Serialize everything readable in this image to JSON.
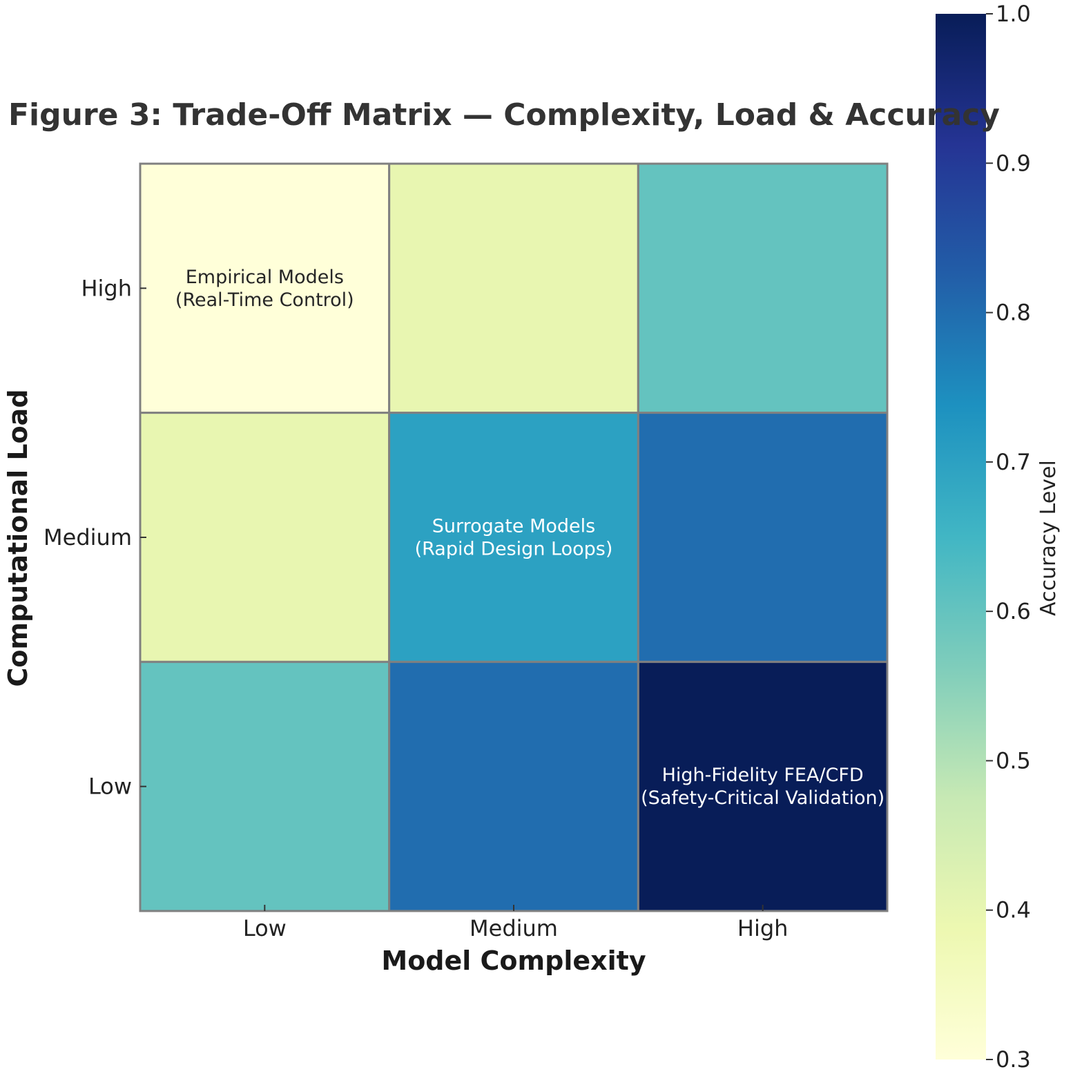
{
  "chart_data": {
    "type": "heatmap",
    "title": "Figure 3: Trade-Off Matrix — Complexity, Load & Accuracy",
    "xlabel": "Model Complexity",
    "ylabel": "Computational Load",
    "x_categories": [
      "Low",
      "Medium",
      "High"
    ],
    "y_categories": [
      "High",
      "Medium",
      "Low"
    ],
    "values": [
      [
        0.3,
        0.4,
        0.6
      ],
      [
        0.4,
        0.7,
        0.8
      ],
      [
        0.6,
        0.8,
        1.0
      ]
    ],
    "annotations": [
      {
        "row": 0,
        "col": 0,
        "lines": [
          "Empirical Models",
          "(Real-Time Control)"
        ]
      },
      {
        "row": 1,
        "col": 1,
        "lines": [
          "Surrogate Models",
          "(Rapid Design Loops)"
        ]
      },
      {
        "row": 2,
        "col": 2,
        "lines": [
          "High-Fidelity FEA/CFD",
          "(Safety-Critical Validation)"
        ]
      }
    ],
    "colorbar": {
      "label": "Accuracy Level",
      "range": [
        0.3,
        1.0
      ],
      "ticks": [
        "0.3",
        "0.4",
        "0.5",
        "0.6",
        "0.7",
        "0.8",
        "0.9",
        "1.0"
      ],
      "colormap": "YlGnBu"
    },
    "colors": {
      "cell_border": "#808080",
      "stops": [
        "#ffffd9",
        "#edf8b1",
        "#c7e9b4",
        "#7fcdbb",
        "#41b6c4",
        "#1d91c0",
        "#225ea8",
        "#253494",
        "#081d58"
      ]
    }
  }
}
